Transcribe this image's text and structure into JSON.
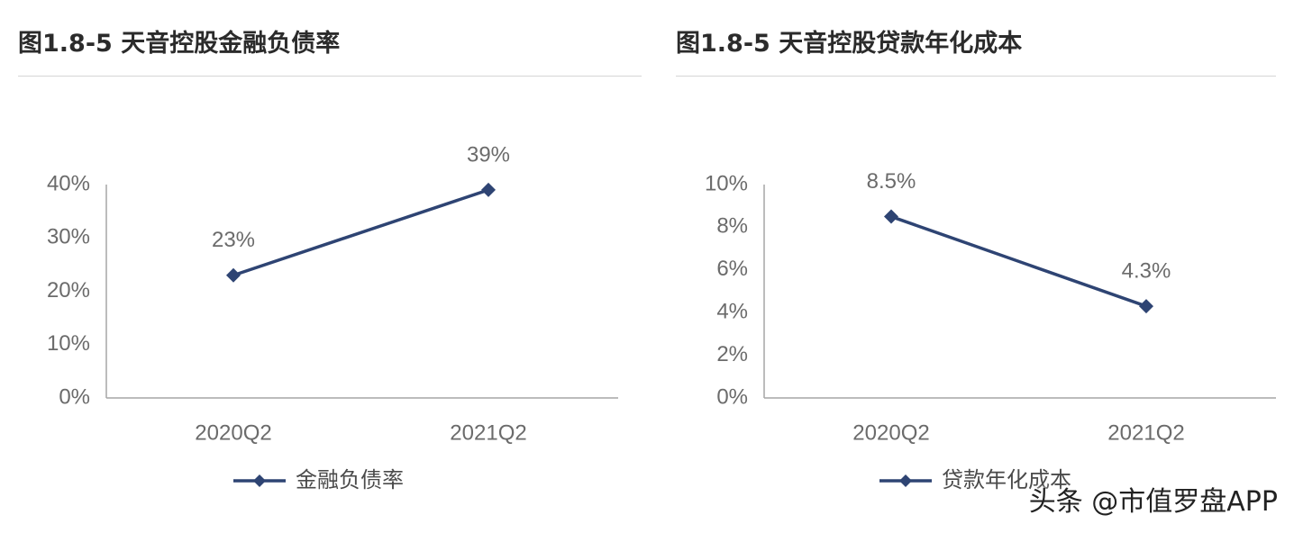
{
  "chart_data": [
    {
      "type": "line",
      "title": "图1.8-5 天音控股金融负债率",
      "categories": [
        "2020Q2",
        "2021Q2"
      ],
      "series": [
        {
          "name": "金融负债率",
          "values": [
            23,
            39
          ],
          "data_labels": [
            "23%",
            "39%"
          ],
          "color": "#2e4473",
          "marker": "diamond"
        }
      ],
      "ylim": [
        0,
        40
      ],
      "yticks": [
        0,
        10,
        20,
        30,
        40
      ],
      "ytick_labels": [
        "0%",
        "10%",
        "20%",
        "30%",
        "40%"
      ],
      "grid": false,
      "legend": "bottom"
    },
    {
      "type": "line",
      "title": "图1.8-5 天音控股贷款年化成本",
      "categories": [
        "2020Q2",
        "2021Q2"
      ],
      "series": [
        {
          "name": "贷款年化成本",
          "values": [
            8.5,
            4.3
          ],
          "data_labels": [
            "8.5%",
            "4.3%"
          ],
          "color": "#2e4473",
          "marker": "diamond"
        }
      ],
      "ylim": [
        0,
        10
      ],
      "yticks": [
        0,
        2,
        4,
        6,
        8,
        10
      ],
      "ytick_labels": [
        "0%",
        "2%",
        "4%",
        "6%",
        "8%",
        "10%"
      ],
      "grid": false,
      "legend": "bottom"
    }
  ],
  "watermark": "头条 @市值罗盘APP",
  "colors": {
    "axis": "#a6a6a6",
    "text": "#6b6b6b",
    "title_rule": "#d6d6d6"
  }
}
